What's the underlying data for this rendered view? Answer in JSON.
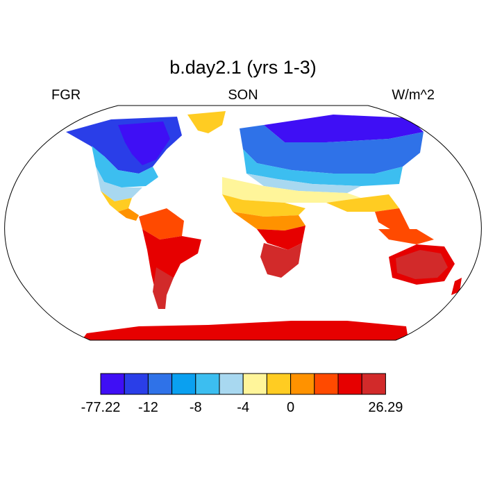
{
  "title": "b.day2.1 (yrs 1-3)",
  "left_label": "FGR",
  "center_label": "SON",
  "right_label": "W/m^2",
  "colorbar": {
    "colors": [
      "#3f0ff5",
      "#2a3ee8",
      "#2f72e8",
      "#0aa0f0",
      "#3cbef0",
      "#a8d8f0",
      "#fff59a",
      "#ffcc22",
      "#ff9200",
      "#ff4a00",
      "#e60000",
      "#d22a2a"
    ],
    "ticks": [
      {
        "after": 0,
        "label": "-77.22"
      },
      {
        "after": 2,
        "label": "-12"
      },
      {
        "after": 4,
        "label": "-8"
      },
      {
        "after": 6,
        "label": "-4"
      },
      {
        "after": 8,
        "label": "0"
      },
      {
        "after": 12,
        "label": "26.29"
      }
    ]
  }
}
